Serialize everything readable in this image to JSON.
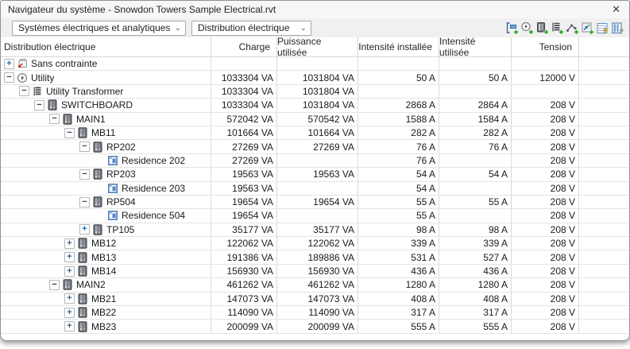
{
  "window": {
    "title": "Navigateur du système - Snowdon Towers Sample Electrical.rvt",
    "close_glyph": "✕"
  },
  "toolbar": {
    "system_type_dropdown": {
      "value": "Systèmes électriques et analytiques"
    },
    "view_dropdown": {
      "value": "Distribution électrique"
    },
    "icons": [
      "system-selection-icon",
      "add-circuit-icon",
      "add-panel-icon",
      "add-transformer-icon",
      "add-switch-icon",
      "add-equipment-icon",
      "panel-schedule-icon",
      "column-settings-icon"
    ]
  },
  "colors": {
    "accent_blue": "#2b66a8",
    "plus_green": "#2ea12e",
    "bolt_yellow": "#f2b600",
    "arrow_red": "#c0392b",
    "grid_line": "#d9d9d9",
    "panel_gray": "#686d72",
    "space_blue": "#4e7fbe"
  },
  "table": {
    "columns": [
      "Distribution électrique",
      "Charge",
      "Puissance utilisée",
      "Intensité installée",
      "Intensité utilisée",
      "Tension"
    ],
    "value_keys": [
      "charge",
      "puissance",
      "installee",
      "utilisee",
      "tension"
    ],
    "rows": [
      {
        "label": "Sans contrainte",
        "depth": 0,
        "expander": "plus",
        "icon": "unassigned",
        "charge": "",
        "puissance": "",
        "installee": "",
        "utilisee": "",
        "tension": ""
      },
      {
        "label": "Utility",
        "depth": 0,
        "expander": "minus",
        "icon": "utility",
        "charge": "1033304 VA",
        "puissance": "1031804 VA",
        "installee": "50 A",
        "utilisee": "50 A",
        "tension": "12000 V"
      },
      {
        "label": "Utility Transformer",
        "depth": 1,
        "expander": "minus",
        "icon": "transformer",
        "charge": "1033304 VA",
        "puissance": "1031804 VA",
        "installee": "",
        "utilisee": "",
        "tension": ""
      },
      {
        "label": "SWITCHBOARD",
        "depth": 2,
        "expander": "minus",
        "icon": "panel",
        "charge": "1033304 VA",
        "puissance": "1031804 VA",
        "installee": "2868 A",
        "utilisee": "2864 A",
        "tension": "208 V"
      },
      {
        "label": "MAIN1",
        "depth": 3,
        "expander": "minus",
        "icon": "panel",
        "charge": "572042 VA",
        "puissance": "570542 VA",
        "installee": "1588 A",
        "utilisee": "1584 A",
        "tension": "208 V"
      },
      {
        "label": "MB11",
        "depth": 4,
        "expander": "minus",
        "icon": "panel",
        "charge": "101664 VA",
        "puissance": "101664 VA",
        "installee": "282 A",
        "utilisee": "282 A",
        "tension": "208 V"
      },
      {
        "label": "RP202",
        "depth": 5,
        "expander": "minus",
        "icon": "panel",
        "charge": "27269 VA",
        "puissance": "27269 VA",
        "installee": "76 A",
        "utilisee": "76 A",
        "tension": "208 V"
      },
      {
        "label": "Residence 202",
        "depth": 6,
        "expander": "none",
        "icon": "space",
        "charge": "27269 VA",
        "puissance": "",
        "installee": "76 A",
        "utilisee": "",
        "tension": "208 V"
      },
      {
        "label": "RP203",
        "depth": 5,
        "expander": "minus",
        "icon": "panel",
        "charge": "19563 VA",
        "puissance": "19563 VA",
        "installee": "54 A",
        "utilisee": "54 A",
        "tension": "208 V"
      },
      {
        "label": "Residence 203",
        "depth": 6,
        "expander": "none",
        "icon": "space",
        "charge": "19563 VA",
        "puissance": "",
        "installee": "54 A",
        "utilisee": "",
        "tension": "208 V"
      },
      {
        "label": "RP504",
        "depth": 5,
        "expander": "minus",
        "icon": "panel",
        "charge": "19654 VA",
        "puissance": "19654 VA",
        "installee": "55 A",
        "utilisee": "55 A",
        "tension": "208 V"
      },
      {
        "label": "Residence 504",
        "depth": 6,
        "expander": "none",
        "icon": "space",
        "charge": "19654 VA",
        "puissance": "",
        "installee": "55 A",
        "utilisee": "",
        "tension": "208 V"
      },
      {
        "label": "TP105",
        "depth": 5,
        "expander": "plus",
        "icon": "panel",
        "charge": "35177 VA",
        "puissance": "35177 VA",
        "installee": "98 A",
        "utilisee": "98 A",
        "tension": "208 V"
      },
      {
        "label": "MB12",
        "depth": 4,
        "expander": "plus",
        "icon": "panel",
        "charge": "122062 VA",
        "puissance": "122062 VA",
        "installee": "339 A",
        "utilisee": "339 A",
        "tension": "208 V"
      },
      {
        "label": "MB13",
        "depth": 4,
        "expander": "plus",
        "icon": "panel",
        "charge": "191386 VA",
        "puissance": "189886 VA",
        "installee": "531 A",
        "utilisee": "527 A",
        "tension": "208 V"
      },
      {
        "label": "MB14",
        "depth": 4,
        "expander": "plus",
        "icon": "panel",
        "charge": "156930 VA",
        "puissance": "156930 VA",
        "installee": "436 A",
        "utilisee": "436 A",
        "tension": "208 V"
      },
      {
        "label": "MAIN2",
        "depth": 3,
        "expander": "minus",
        "icon": "panel",
        "charge": "461262 VA",
        "puissance": "461262 VA",
        "installee": "1280 A",
        "utilisee": "1280 A",
        "tension": "208 V"
      },
      {
        "label": "MB21",
        "depth": 4,
        "expander": "plus",
        "icon": "panel",
        "charge": "147073 VA",
        "puissance": "147073 VA",
        "installee": "408 A",
        "utilisee": "408 A",
        "tension": "208 V"
      },
      {
        "label": "MB22",
        "depth": 4,
        "expander": "plus",
        "icon": "panel",
        "charge": "114090 VA",
        "puissance": "114090 VA",
        "installee": "317 A",
        "utilisee": "317 A",
        "tension": "208 V"
      },
      {
        "label": "MB23",
        "depth": 4,
        "expander": "plus",
        "icon": "panel",
        "charge": "200099 VA",
        "puissance": "200099 VA",
        "installee": "555 A",
        "utilisee": "555 A",
        "tension": "208 V"
      }
    ]
  }
}
